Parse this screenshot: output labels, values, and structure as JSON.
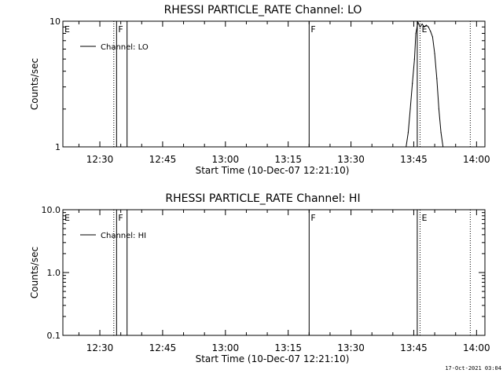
{
  "chart_data": [
    {
      "type": "line",
      "title": "RHESSI PARTICLE_RATE Channel: LO",
      "xlabel": "Start Time (10-Dec-07 12:21:10)",
      "ylabel": "Counts/sec",
      "yscale": "log",
      "ylim": [
        1,
        10
      ],
      "yticks": [
        {
          "value": 1,
          "label": "1"
        },
        {
          "value": 10,
          "label": "10"
        }
      ],
      "xlim": [
        "12:21:10",
        "14:02:00"
      ],
      "xticks": [
        "12:30",
        "12:45",
        "13:00",
        "13:15",
        "13:30",
        "13:45",
        "14:00"
      ],
      "legend": {
        "position": "top-left",
        "entries": [
          "Channel: LO"
        ]
      },
      "series": [
        {
          "name": "Channel: LO",
          "x": [
            "13:43:10",
            "13:43:40",
            "13:44:10",
            "13:44:40",
            "13:45:10",
            "13:45:30",
            "13:46:00",
            "13:46:30",
            "13:47:00",
            "13:47:30",
            "13:48:00",
            "13:48:30",
            "13:49:00",
            "13:49:30",
            "13:50:00",
            "13:50:30",
            "13:51:00",
            "13:51:30",
            "13:52:00"
          ],
          "y": [
            1.0,
            1.3,
            2.0,
            3.2,
            5.0,
            8.0,
            9.8,
            9.0,
            9.5,
            9.0,
            9.3,
            9.0,
            8.3,
            7.5,
            5.5,
            3.5,
            2.0,
            1.3,
            1.0
          ]
        }
      ],
      "markers": [
        {
          "time": "12:21:10",
          "style": "solid",
          "label": "E"
        },
        {
          "time": "12:33:20",
          "style": "dotted",
          "label": ""
        },
        {
          "time": "12:34:00",
          "style": "solid",
          "label": "F"
        },
        {
          "time": "12:36:30",
          "style": "solid",
          "label": ""
        },
        {
          "time": "13:20:00",
          "style": "solid",
          "label": "F"
        },
        {
          "time": "13:45:50",
          "style": "solid",
          "label": ""
        },
        {
          "time": "13:46:30",
          "style": "dotted",
          "label": "E"
        },
        {
          "time": "13:58:30",
          "style": "dotted",
          "label": ""
        }
      ]
    },
    {
      "type": "line",
      "title": "RHESSI PARTICLE_RATE Channel: HI",
      "xlabel": "Start Time (10-Dec-07 12:21:10)",
      "ylabel": "Counts/sec",
      "yscale": "log",
      "ylim": [
        0.1,
        10
      ],
      "yticks": [
        {
          "value": 0.1,
          "label": "0.1"
        },
        {
          "value": 1,
          "label": "1.0"
        },
        {
          "value": 10,
          "label": "10.0"
        }
      ],
      "xlim": [
        "12:21:10",
        "14:02:00"
      ],
      "xticks": [
        "12:30",
        "12:45",
        "13:00",
        "13:15",
        "13:30",
        "13:45",
        "14:00"
      ],
      "legend": {
        "position": "top-left",
        "entries": [
          "Channel: HI"
        ]
      },
      "series": [
        {
          "name": "Channel: HI",
          "x": [],
          "y": []
        }
      ],
      "markers": [
        {
          "time": "12:21:10",
          "style": "solid",
          "label": "E"
        },
        {
          "time": "12:33:20",
          "style": "dotted",
          "label": ""
        },
        {
          "time": "12:34:00",
          "style": "solid",
          "label": "F"
        },
        {
          "time": "12:36:30",
          "style": "solid",
          "label": ""
        },
        {
          "time": "13:20:00",
          "style": "solid",
          "label": "F"
        },
        {
          "time": "13:45:50",
          "style": "solid",
          "label": ""
        },
        {
          "time": "13:46:30",
          "style": "dotted",
          "label": "E"
        },
        {
          "time": "13:58:30",
          "style": "dotted",
          "label": ""
        }
      ]
    }
  ],
  "footer": {
    "timestamp": "17-Oct-2021 03:04"
  }
}
